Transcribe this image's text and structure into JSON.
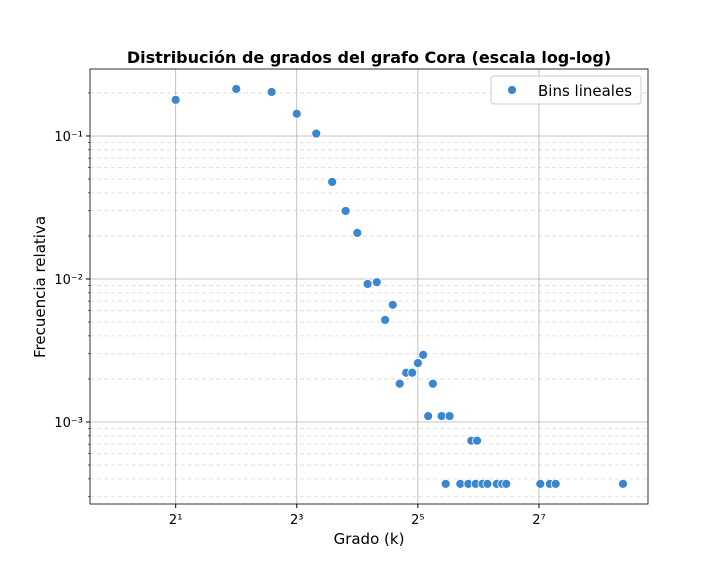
{
  "chart_data": {
    "type": "scatter",
    "title": "Distribución de grados del grafo Cora (escala log-log)",
    "x_label": "Grado (k)",
    "y_label": "Frecuencia relativa",
    "xscale": "log",
    "yscale": "log",
    "grid": true,
    "legend_position": "upper right",
    "xlim": [
      0.75,
      446
    ],
    "ylim": [
      0.000267,
      0.294
    ],
    "xticks": [
      {
        "value": 2,
        "label": "2¹"
      },
      {
        "value": 8,
        "label": "2³"
      },
      {
        "value": 32,
        "label": "2⁵"
      },
      {
        "value": 128,
        "label": "2⁷"
      }
    ],
    "yticks": [
      {
        "value": 0.001,
        "label": "10⁻³"
      },
      {
        "value": 0.01,
        "label": "10⁻²"
      },
      {
        "value": 0.1,
        "label": "10⁻¹"
      }
    ],
    "y_minor_ticks": [
      0.0003,
      0.0004,
      0.0005,
      0.0006,
      0.0007,
      0.0008,
      0.0009,
      0.002,
      0.003,
      0.004,
      0.005,
      0.006,
      0.007,
      0.008,
      0.009,
      0.02,
      0.03,
      0.04,
      0.05,
      0.06,
      0.07,
      0.08,
      0.09,
      0.2
    ],
    "series": [
      {
        "name": "Bins lineales",
        "color": "#3b86d0",
        "x": [
          2,
          4,
          6,
          8,
          10,
          12,
          14,
          16,
          18,
          20,
          22,
          24,
          26,
          28,
          30,
          32,
          34,
          36,
          38,
          42,
          44,
          46,
          52,
          57,
          59,
          62,
          63,
          67,
          71,
          79,
          84,
          88,
          130,
          145,
          155,
          335
        ],
        "values": [
          0.179,
          0.213,
          0.203,
          0.143,
          0.104,
          0.0477,
          0.0299,
          0.021,
          0.00923,
          0.0095,
          0.00517,
          0.0066,
          0.00185,
          0.00221,
          0.00221,
          0.00258,
          0.00295,
          0.0011,
          0.00185,
          0.0011,
          0.000369,
          0.0011,
          0.000369,
          0.000369,
          0.00074,
          0.000369,
          0.00074,
          0.000369,
          0.000369,
          0.000369,
          0.000369,
          0.000369,
          0.000369,
          0.000369,
          0.000369,
          0.000369
        ]
      }
    ]
  }
}
